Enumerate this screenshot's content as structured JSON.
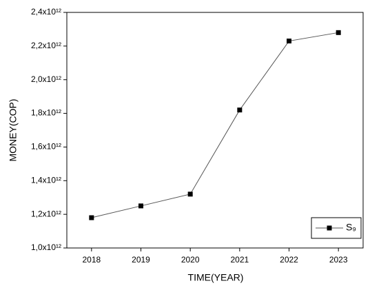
{
  "chart_data": {
    "type": "line",
    "x_label": "TIME(YEAR)",
    "y_label": "MONEY(COP)",
    "x": [
      2018,
      2019,
      2020,
      2021,
      2022,
      2023
    ],
    "series": [
      {
        "name": "S₉",
        "color": "#000000",
        "values": [
          1180000000000,
          1250000000000,
          1320000000000,
          1820000000000,
          2230000000000,
          2280000000000
        ]
      }
    ],
    "xlim": [
      2017.5,
      2023.5
    ],
    "xticks": [
      2018,
      2019,
      2020,
      2021,
      2022,
      2023
    ],
    "ylim": [
      1000000000000,
      2400000000000
    ],
    "yticks": [
      {
        "value": 1000000000000,
        "label": "1,0x10¹²"
      },
      {
        "value": 1200000000000,
        "label": "1,2x10¹²"
      },
      {
        "value": 1400000000000,
        "label": "1,4x10¹²"
      },
      {
        "value": 1600000000000,
        "label": "1,6x10¹²"
      },
      {
        "value": 1800000000000,
        "label": "1,8x10¹²"
      },
      {
        "value": 2000000000000,
        "label": "2,0x10¹²"
      },
      {
        "value": 2200000000000,
        "label": "2,2x10¹²"
      },
      {
        "value": 2400000000000,
        "label": "2,4x10¹²"
      }
    ],
    "grid": false,
    "legend": "lower-right"
  }
}
